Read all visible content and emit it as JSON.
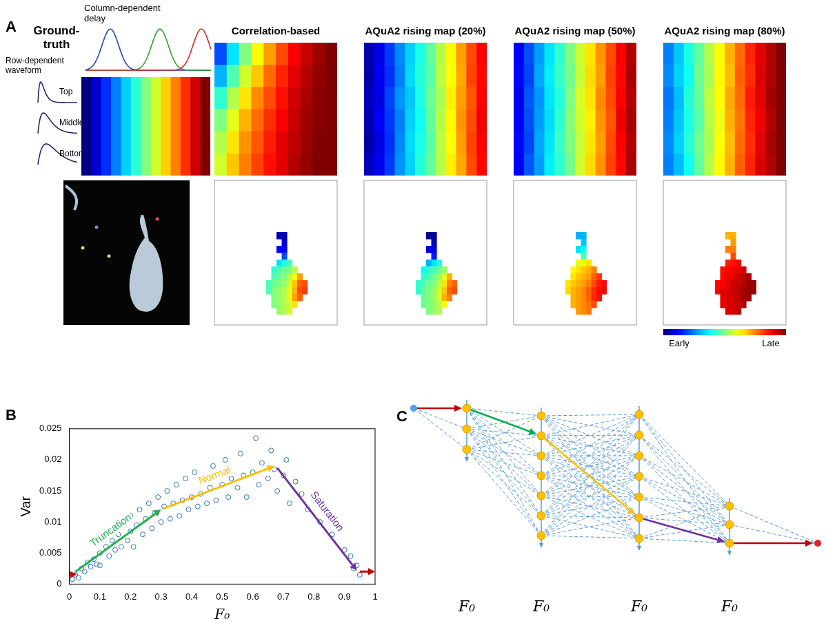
{
  "panel_a": {
    "letter": "A",
    "ground_truth": {
      "title": "Ground-truth",
      "delay_label": "Column-dependent delay",
      "waveform_label": "Row-dependent waveform",
      "waveform_rows": [
        "Top",
        "Middle",
        "Bottom"
      ],
      "cells": [
        [
          0,
          0.08,
          0.17,
          0.25,
          0.33,
          0.42,
          0.5,
          0.58,
          0.67,
          0.75,
          0.83,
          0.92,
          1
        ]
      ]
    },
    "maps": [
      {
        "title": "Correlation-based",
        "cells": [
          [
            0.2,
            0.35,
            0.5,
            0.62,
            0.72,
            0.8,
            0.88,
            0.93,
            0.97,
            1
          ],
          [
            0.3,
            0.45,
            0.58,
            0.68,
            0.77,
            0.84,
            0.9,
            0.95,
            0.98,
            1
          ],
          [
            0.42,
            0.55,
            0.65,
            0.74,
            0.8,
            0.86,
            0.92,
            0.96,
            0.99,
            1
          ],
          [
            0.5,
            0.6,
            0.7,
            0.77,
            0.83,
            0.88,
            0.93,
            0.97,
            0.99,
            1
          ],
          [
            0.55,
            0.65,
            0.73,
            0.79,
            0.85,
            0.9,
            0.94,
            0.97,
            1,
            1
          ],
          [
            0.58,
            0.68,
            0.75,
            0.81,
            0.86,
            0.9,
            0.95,
            0.98,
            1,
            1
          ]
        ],
        "event_cells": [
          [
            null,
            null,
            0.05,
            0.05,
            null,
            null,
            null,
            null
          ],
          [
            null,
            null,
            null,
            0.08,
            null,
            null,
            null,
            null
          ],
          [
            null,
            null,
            0.1,
            0.12,
            null,
            null,
            null,
            null
          ],
          [
            null,
            null,
            null,
            0.2,
            null,
            null,
            null,
            null
          ],
          [
            null,
            null,
            0.35,
            0.4,
            0.45,
            null,
            null,
            null
          ],
          [
            null,
            0.42,
            0.45,
            0.48,
            0.5,
            0.55,
            null,
            null
          ],
          [
            null,
            0.45,
            0.48,
            0.5,
            0.55,
            0.62,
            0.72,
            null
          ],
          [
            0.45,
            0.48,
            0.5,
            0.52,
            0.58,
            0.68,
            0.78,
            0.8
          ],
          [
            0.45,
            0.5,
            0.52,
            0.55,
            0.6,
            0.7,
            0.8,
            0.82
          ],
          [
            null,
            0.5,
            0.52,
            0.55,
            0.6,
            0.72,
            0.78,
            null
          ],
          [
            null,
            0.5,
            0.52,
            0.55,
            0.58,
            0.65,
            null,
            null
          ],
          [
            null,
            null,
            0.52,
            0.55,
            0.58,
            null,
            null,
            null
          ]
        ]
      },
      {
        "title": "AQuA2 rising map (20%)",
        "cells": [
          [
            0.05,
            0.1,
            0.18,
            0.26,
            0.33,
            0.4,
            0.47,
            0.55,
            0.63,
            0.72,
            0.8,
            0.88
          ],
          [
            0.04,
            0.11,
            0.17,
            0.25,
            0.34,
            0.41,
            0.46,
            0.56,
            0.62,
            0.71,
            0.81,
            0.87
          ],
          [
            0.06,
            0.1,
            0.19,
            0.27,
            0.32,
            0.4,
            0.48,
            0.54,
            0.64,
            0.72,
            0.79,
            0.88
          ],
          [
            0.05,
            0.12,
            0.18,
            0.25,
            0.33,
            0.39,
            0.47,
            0.55,
            0.63,
            0.73,
            0.8,
            0.89
          ],
          [
            0.04,
            0.1,
            0.17,
            0.26,
            0.34,
            0.4,
            0.46,
            0.56,
            0.62,
            0.72,
            0.81,
            0.88
          ],
          [
            0.06,
            0.11,
            0.18,
            0.27,
            0.33,
            0.41,
            0.47,
            0.55,
            0.64,
            0.71,
            0.8,
            0.87
          ]
        ],
        "event_cells": [
          [
            null,
            null,
            0.02,
            0.03,
            null,
            null,
            null,
            null
          ],
          [
            null,
            null,
            null,
            0.05,
            null,
            null,
            null,
            null
          ],
          [
            null,
            null,
            0.08,
            0.1,
            null,
            null,
            null,
            null
          ],
          [
            null,
            null,
            null,
            0.15,
            null,
            null,
            null,
            null
          ],
          [
            null,
            null,
            0.3,
            0.35,
            0.4,
            null,
            null,
            null
          ],
          [
            null,
            0.38,
            0.42,
            0.45,
            0.48,
            0.52,
            null,
            null
          ],
          [
            null,
            0.42,
            0.45,
            0.48,
            0.52,
            0.6,
            0.7,
            null
          ],
          [
            0.42,
            0.45,
            0.48,
            0.5,
            0.55,
            0.65,
            0.75,
            0.78
          ],
          [
            0.42,
            0.47,
            0.5,
            0.52,
            0.58,
            0.68,
            0.78,
            0.8
          ],
          [
            null,
            0.47,
            0.5,
            0.52,
            0.58,
            0.7,
            0.75,
            null
          ],
          [
            null,
            0.48,
            0.5,
            0.52,
            0.55,
            0.62,
            null,
            null
          ],
          [
            null,
            null,
            0.5,
            0.52,
            0.55,
            null,
            null,
            null
          ]
        ]
      },
      {
        "title": "AQuA2 rising map (50%)",
        "cells": [
          [
            0.12,
            0.2,
            0.28,
            0.35,
            0.42,
            0.5,
            0.58,
            0.65,
            0.73,
            0.8,
            0.88,
            0.95
          ],
          [
            0.13,
            0.19,
            0.29,
            0.36,
            0.43,
            0.49,
            0.57,
            0.66,
            0.72,
            0.81,
            0.87,
            0.96
          ],
          [
            0.11,
            0.21,
            0.27,
            0.35,
            0.41,
            0.5,
            0.59,
            0.65,
            0.74,
            0.8,
            0.88,
            0.95
          ],
          [
            0.12,
            0.2,
            0.28,
            0.34,
            0.42,
            0.51,
            0.58,
            0.64,
            0.73,
            0.79,
            0.89,
            0.96
          ],
          [
            0.13,
            0.19,
            0.29,
            0.35,
            0.43,
            0.5,
            0.57,
            0.65,
            0.72,
            0.8,
            0.88,
            0.95
          ],
          [
            0.12,
            0.21,
            0.28,
            0.36,
            0.42,
            0.49,
            0.58,
            0.66,
            0.73,
            0.81,
            0.87,
            0.96
          ]
        ],
        "event_cells": [
          [
            null,
            null,
            0.3,
            0.3,
            null,
            null,
            null,
            null
          ],
          [
            null,
            null,
            null,
            0.32,
            null,
            null,
            null,
            null
          ],
          [
            null,
            null,
            0.35,
            0.38,
            null,
            null,
            null,
            null
          ],
          [
            null,
            null,
            null,
            0.45,
            null,
            null,
            null,
            null
          ],
          [
            null,
            null,
            0.6,
            0.62,
            0.65,
            null,
            null,
            null
          ],
          [
            null,
            0.62,
            0.65,
            0.68,
            0.7,
            0.75,
            null,
            null
          ],
          [
            null,
            0.65,
            0.68,
            0.7,
            0.72,
            0.78,
            0.82,
            null
          ],
          [
            0.65,
            0.68,
            0.7,
            0.72,
            0.75,
            0.8,
            0.85,
            0.87
          ],
          [
            0.66,
            0.7,
            0.72,
            0.74,
            0.78,
            0.83,
            0.87,
            0.88
          ],
          [
            null,
            0.7,
            0.72,
            0.74,
            0.78,
            0.84,
            0.86,
            null
          ],
          [
            null,
            0.7,
            0.72,
            0.74,
            0.76,
            0.8,
            null,
            null
          ],
          [
            null,
            null,
            0.72,
            0.74,
            0.76,
            null,
            null,
            null
          ]
        ]
      },
      {
        "title": "AQuA2 rising map (80%)",
        "cells": [
          [
            0.25,
            0.32,
            0.4,
            0.47,
            0.55,
            0.62,
            0.7,
            0.77,
            0.84,
            0.9,
            0.95,
            1
          ],
          [
            0.26,
            0.33,
            0.39,
            0.48,
            0.54,
            0.63,
            0.69,
            0.78,
            0.83,
            0.91,
            0.95,
            1
          ],
          [
            0.24,
            0.31,
            0.41,
            0.47,
            0.56,
            0.62,
            0.71,
            0.77,
            0.85,
            0.9,
            0.96,
            1
          ],
          [
            0.25,
            0.32,
            0.4,
            0.46,
            0.55,
            0.61,
            0.7,
            0.76,
            0.84,
            0.89,
            0.95,
            1
          ],
          [
            0.26,
            0.33,
            0.41,
            0.48,
            0.54,
            0.62,
            0.69,
            0.77,
            0.83,
            0.9,
            0.96,
            1
          ],
          [
            0.25,
            0.31,
            0.39,
            0.47,
            0.55,
            0.63,
            0.7,
            0.78,
            0.84,
            0.91,
            0.95,
            1
          ]
        ],
        "event_cells": [
          [
            null,
            null,
            0.7,
            0.7,
            null,
            null,
            null,
            null
          ],
          [
            null,
            null,
            null,
            0.72,
            null,
            null,
            null,
            null
          ],
          [
            null,
            null,
            0.75,
            0.75,
            null,
            null,
            null,
            null
          ],
          [
            null,
            null,
            null,
            0.8,
            null,
            null,
            null,
            null
          ],
          [
            null,
            null,
            0.85,
            0.86,
            0.87,
            null,
            null,
            null
          ],
          [
            null,
            0.86,
            0.87,
            0.88,
            0.9,
            0.92,
            null,
            null
          ],
          [
            null,
            0.87,
            0.88,
            0.9,
            0.92,
            0.94,
            0.96,
            null
          ],
          [
            0.87,
            0.88,
            0.9,
            0.92,
            0.93,
            0.95,
            0.97,
            0.98
          ],
          [
            0.88,
            0.9,
            0.91,
            0.92,
            0.94,
            0.96,
            0.98,
            0.98
          ],
          [
            null,
            0.9,
            0.91,
            0.92,
            0.94,
            0.96,
            0.97,
            null
          ],
          [
            null,
            0.9,
            0.91,
            0.92,
            0.93,
            0.95,
            null,
            null
          ],
          [
            null,
            null,
            0.91,
            0.92,
            0.93,
            null,
            null,
            null
          ]
        ]
      }
    ],
    "colorbar": {
      "range": [
        0,
        1
      ],
      "labels": [
        "Early",
        "Late"
      ]
    }
  },
  "chart_data": {
    "letter": "B",
    "type": "scatter",
    "xlabel": "F₀",
    "ylabel": "Var",
    "x": [
      0.01,
      0.02,
      0.03,
      0.04,
      0.05,
      0.06,
      0.07,
      0.08,
      0.09,
      0.1,
      0.1,
      0.12,
      0.13,
      0.14,
      0.15,
      0.16,
      0.17,
      0.18,
      0.19,
      0.2,
      0.2,
      0.21,
      0.22,
      0.23,
      0.24,
      0.25,
      0.26,
      0.27,
      0.28,
      0.29,
      0.3,
      0.31,
      0.32,
      0.33,
      0.34,
      0.35,
      0.36,
      0.37,
      0.38,
      0.39,
      0.4,
      0.41,
      0.42,
      0.43,
      0.44,
      0.45,
      0.46,
      0.47,
      0.48,
      0.5,
      0.51,
      0.52,
      0.53,
      0.55,
      0.56,
      0.57,
      0.58,
      0.6,
      0.61,
      0.62,
      0.63,
      0.65,
      0.66,
      0.67,
      0.68,
      0.7,
      0.71,
      0.72,
      0.74,
      0.76,
      0.78,
      0.8,
      0.82,
      0.84,
      0.86,
      0.88,
      0.9,
      0.92,
      0.93,
      0.94,
      0.95
    ],
    "values": [
      0.0008,
      0.0015,
      0.001,
      0.0025,
      0.002,
      0.0035,
      0.0028,
      0.004,
      0.0032,
      0.005,
      0.003,
      0.006,
      0.0045,
      0.007,
      0.0055,
      0.008,
      0.006,
      0.0095,
      0.007,
      0.0085,
      0.011,
      0.006,
      0.0095,
      0.012,
      0.008,
      0.0105,
      0.013,
      0.009,
      0.0115,
      0.014,
      0.01,
      0.0125,
      0.015,
      0.0105,
      0.013,
      0.016,
      0.011,
      0.0135,
      0.017,
      0.012,
      0.014,
      0.018,
      0.0125,
      0.0145,
      0.0165,
      0.013,
      0.0155,
      0.019,
      0.0135,
      0.016,
      0.02,
      0.014,
      0.017,
      0.0155,
      0.021,
      0.0175,
      0.014,
      0.018,
      0.0235,
      0.016,
      0.0195,
      0.017,
      0.0215,
      0.0185,
      0.015,
      0.0175,
      0.02,
      0.013,
      0.0165,
      0.0145,
      0.012,
      0.0135,
      0.01,
      0.0115,
      0.008,
      0.009,
      0.0055,
      0.0045,
      0.0025,
      0.003,
      0.0015
    ],
    "color": "#2e75b6",
    "marker": "circle",
    "xlim": [
      0,
      1
    ],
    "ylim": [
      0,
      0.025
    ],
    "xticks": [
      0,
      0.1,
      0.2,
      0.3,
      0.4,
      0.5,
      0.6,
      0.7,
      0.8,
      0.9,
      1
    ],
    "yticks": [
      0,
      0.005,
      0.01,
      0.015,
      0.02,
      0.025
    ],
    "grid": false,
    "annotations": [
      {
        "text": "Truncation",
        "color": "#22b14c",
        "from": [
          0.02,
          0.002
        ],
        "to": [
          0.3,
          0.012
        ]
      },
      {
        "text": "Normal",
        "color": "#ffc000",
        "from": [
          0.31,
          0.0122
        ],
        "to": [
          0.67,
          0.019
        ]
      },
      {
        "text": "Saturation",
        "color": "#7030a0",
        "from": [
          0.68,
          0.0187
        ],
        "to": [
          0.94,
          0.0022
        ]
      },
      {
        "color": "#c00000",
        "from": [
          0,
          0.0015
        ],
        "to": [
          0.025,
          0.0016
        ]
      },
      {
        "color": "#c00000",
        "from": [
          0.95,
          0.002
        ],
        "to": [
          1,
          0.002
        ]
      }
    ]
  },
  "panel_c": {
    "letter": "C",
    "columns": [
      {
        "label": "F₀",
        "nodes": 3
      },
      {
        "label": "F₀",
        "nodes": 7
      },
      {
        "label": "F₀",
        "nodes": 7
      },
      {
        "label": "F₀",
        "nodes": 3
      }
    ],
    "path": [
      0,
      1,
      5,
      2
    ],
    "colors": [
      "#c00000",
      "#00b050",
      "#ffc000",
      "#7030a0",
      "#c00000"
    ]
  }
}
